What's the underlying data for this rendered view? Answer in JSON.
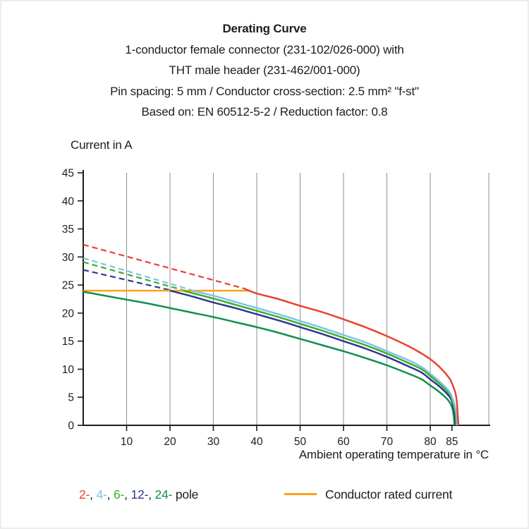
{
  "header": {
    "title": "Derating Curve",
    "subtitle_lines": [
      "1-conductor female connector (231-102/026-000) with",
      "THT male header (231-462/001-000)",
      "Pin spacing: 5 mm / Conductor cross-section: 2.5 mm² \"f-st\"",
      "Based on: EN 60512-5-2 / Reduction factor: 0.8"
    ]
  },
  "chart_data": {
    "type": "line",
    "title": "Derating Curve",
    "xlabel": "Ambient operating temperature in °C",
    "ylabel": "Current in A",
    "xlim": [
      0,
      93.5
    ],
    "ylim": [
      0,
      45
    ],
    "x_ticks": [
      10,
      20,
      30,
      40,
      50,
      60,
      70,
      80,
      85
    ],
    "y_ticks": [
      0,
      5,
      10,
      15,
      20,
      25,
      30,
      35,
      40,
      45
    ],
    "grid_x": [
      10,
      20,
      30,
      40,
      50,
      60,
      70,
      80
    ],
    "grid_on": true,
    "legend_position": "bottom",
    "series": [
      {
        "name": "2-pole dashed (derated above limit)",
        "color": "#e9422e",
        "style": "dashed",
        "points": [
          [
            0,
            32.2
          ],
          [
            37,
            24.4
          ]
        ]
      },
      {
        "name": "4-pole dashed (derated above limit)",
        "color": "#7dc3e8",
        "style": "dashed",
        "points": [
          [
            0,
            29.8
          ],
          [
            25,
            24.1
          ]
        ]
      },
      {
        "name": "6-pole dashed (derated above limit)",
        "color": "#3dae2b",
        "style": "dashed",
        "points": [
          [
            0,
            29.1
          ],
          [
            23,
            24.1
          ]
        ]
      },
      {
        "name": "12-pole dashed (derated above limit)",
        "color": "#2d388f",
        "style": "dashed",
        "points": [
          [
            0,
            27.7
          ],
          [
            20,
            24.1
          ]
        ]
      },
      {
        "name": "Conductor rated current",
        "color": "#f9a21a",
        "style": "solid",
        "points": [
          [
            0,
            24
          ],
          [
            38.5,
            24
          ]
        ]
      },
      {
        "name": "24-pole",
        "color": "#118f4c",
        "style": "solid",
        "points": [
          [
            0,
            23.8
          ],
          [
            5,
            23.1
          ],
          [
            10,
            22.4
          ],
          [
            15,
            21.7
          ],
          [
            20,
            20.9
          ],
          [
            25,
            20.1
          ],
          [
            30,
            19.3
          ],
          [
            35,
            18.4
          ],
          [
            40,
            17.5
          ],
          [
            45,
            16.5
          ],
          [
            50,
            15.4
          ],
          [
            55,
            14.3
          ],
          [
            60,
            13.2
          ],
          [
            65,
            12
          ],
          [
            70,
            10.7
          ],
          [
            75,
            9.2
          ],
          [
            78,
            8.2
          ],
          [
            80,
            7.1
          ],
          [
            82,
            6
          ],
          [
            84,
            4.6
          ],
          [
            85,
            3.3
          ],
          [
            85.4,
            1.8
          ],
          [
            85.6,
            0
          ]
        ]
      },
      {
        "name": "12-pole",
        "color": "#2d388f",
        "style": "solid",
        "points": [
          [
            20,
            24
          ],
          [
            25,
            23
          ],
          [
            30,
            21.9
          ],
          [
            35,
            20.9
          ],
          [
            40,
            19.8
          ],
          [
            45,
            18.7
          ],
          [
            50,
            17.5
          ],
          [
            55,
            16.3
          ],
          [
            60,
            15
          ],
          [
            65,
            13.7
          ],
          [
            70,
            12.2
          ],
          [
            75,
            10.5
          ],
          [
            78,
            9.4
          ],
          [
            80,
            8.2
          ],
          [
            82,
            7
          ],
          [
            84,
            5.5
          ],
          [
            85,
            4.3
          ],
          [
            85.6,
            2
          ],
          [
            85.8,
            0
          ]
        ]
      },
      {
        "name": "6-pole",
        "color": "#3dae2b",
        "style": "solid",
        "points": [
          [
            23,
            24
          ],
          [
            25,
            23.6
          ],
          [
            30,
            22.6
          ],
          [
            35,
            21.5
          ],
          [
            40,
            20.4
          ],
          [
            45,
            19.3
          ],
          [
            50,
            18.1
          ],
          [
            55,
            16.9
          ],
          [
            60,
            15.6
          ],
          [
            65,
            14.3
          ],
          [
            70,
            12.8
          ],
          [
            75,
            11.1
          ],
          [
            78,
            10
          ],
          [
            80,
            8.8
          ],
          [
            82,
            7.5
          ],
          [
            84,
            6
          ],
          [
            85,
            4.7
          ],
          [
            85.8,
            2.2
          ],
          [
            86,
            0
          ]
        ]
      },
      {
        "name": "4-pole",
        "color": "#7dc3e8",
        "style": "solid",
        "points": [
          [
            25,
            24
          ],
          [
            30,
            23.1
          ],
          [
            35,
            22
          ],
          [
            40,
            20.9
          ],
          [
            45,
            19.8
          ],
          [
            50,
            18.6
          ],
          [
            55,
            17.4
          ],
          [
            60,
            16.1
          ],
          [
            65,
            14.8
          ],
          [
            70,
            13.2
          ],
          [
            75,
            11.6
          ],
          [
            78,
            10.4
          ],
          [
            80,
            9.2
          ],
          [
            82,
            7.9
          ],
          [
            84,
            6.4
          ],
          [
            85,
            5.1
          ],
          [
            86,
            2.3
          ],
          [
            86.2,
            0
          ]
        ]
      },
      {
        "name": "2-pole",
        "color": "#e9422e",
        "style": "solid",
        "points": [
          [
            37,
            24.4
          ],
          [
            40,
            23.5
          ],
          [
            45,
            22.5
          ],
          [
            50,
            21.3
          ],
          [
            55,
            20.2
          ],
          [
            60,
            18.9
          ],
          [
            65,
            17.5
          ],
          [
            70,
            15.9
          ],
          [
            75,
            14.1
          ],
          [
            78,
            12.8
          ],
          [
            80,
            11.8
          ],
          [
            82,
            10.5
          ],
          [
            84,
            8.8
          ],
          [
            85,
            7.5
          ],
          [
            86,
            5
          ],
          [
            86.5,
            0
          ]
        ]
      }
    ]
  },
  "legend": {
    "pole_labels": [
      "2-",
      "4-",
      "6-",
      "12-",
      "24-"
    ],
    "pole_colors": [
      "#e9422e",
      "#7dc3e8",
      "#3dae2b",
      "#2d388f",
      "#118f4c"
    ],
    "separator": ", ",
    "pole_suffix": " pole",
    "rated_current_label": "Conductor rated current",
    "rated_current_color": "#f9a21a"
  },
  "colors": {
    "axis": "#1d1d1b",
    "grid": "#8f8f8f",
    "text": "#1d1d1b",
    "background": "#ffffff"
  }
}
